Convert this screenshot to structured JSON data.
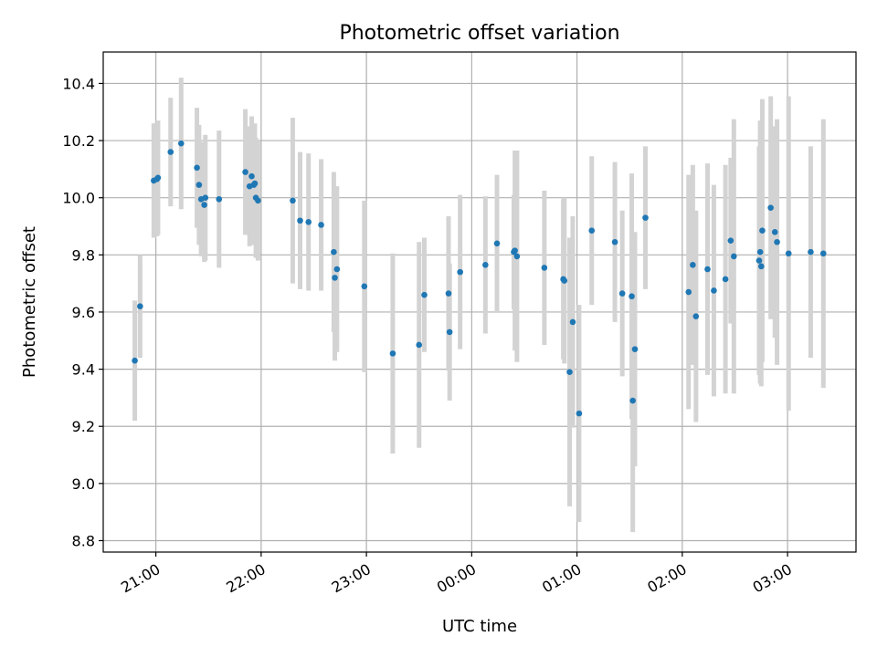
{
  "chart_data": {
    "type": "scatter",
    "title": "Photometric offset variation",
    "xlabel": "UTC time",
    "ylabel": "Photometric offset",
    "x_unit": "hours since 00:00 UTC (negative = previous day)",
    "xlim": [
      -3.5,
      3.65
    ],
    "ylim": [
      8.76,
      10.51
    ],
    "xticks": [
      {
        "value": -3,
        "label": "21:00"
      },
      {
        "value": -2,
        "label": "22:00"
      },
      {
        "value": -1,
        "label": "23:00"
      },
      {
        "value": 0,
        "label": "00:00"
      },
      {
        "value": 1,
        "label": "01:00"
      },
      {
        "value": 2,
        "label": "02:00"
      },
      {
        "value": 3,
        "label": "03:00"
      }
    ],
    "yticks": [
      8.8,
      9.0,
      9.2,
      9.4,
      9.6,
      9.8,
      10.0,
      10.2,
      10.4
    ],
    "grid": true,
    "colors": {
      "point": "#1f77b4",
      "error_bar": "#d3d3d3",
      "grid": "#b0b0b0"
    },
    "series": [
      {
        "x": [
          -3.2,
          -3.15,
          -3.02,
          -2.99,
          -2.98,
          -2.86,
          -2.76,
          -2.61,
          -2.59,
          -2.57,
          -2.54,
          -2.53,
          -2.4,
          -2.15,
          -2.11,
          -2.09,
          -2.07,
          -2.06,
          -2.05,
          -2.03,
          -1.7,
          -1.63,
          -1.55,
          -1.43,
          -1.31,
          -1.3,
          -1.28,
          -1.02,
          -0.75,
          -0.5,
          -0.45,
          -0.22,
          -0.21,
          -0.11,
          0.13,
          0.24,
          0.4,
          0.41,
          0.43,
          0.69,
          0.87,
          0.88,
          0.93,
          0.96,
          1.02,
          1.14,
          1.36,
          1.43,
          1.52,
          1.53,
          1.55,
          1.65,
          2.06,
          2.1,
          2.13,
          2.24,
          2.3,
          2.41,
          2.46,
          2.49,
          2.73,
          2.74,
          2.75,
          2.76,
          2.84,
          2.88,
          2.9,
          3.01,
          3.22,
          3.34
        ],
        "y": [
          9.43,
          9.62,
          10.06,
          10.065,
          10.07,
          10.16,
          10.19,
          10.105,
          10.045,
          9.995,
          9.975,
          10.0,
          9.995,
          10.09,
          10.04,
          10.075,
          10.045,
          10.05,
          10.0,
          9.99,
          9.99,
          9.92,
          9.915,
          9.905,
          9.81,
          9.72,
          9.75,
          9.69,
          9.455,
          9.485,
          9.66,
          9.665,
          9.53,
          9.74,
          9.765,
          9.84,
          9.81,
          9.815,
          9.795,
          9.755,
          9.715,
          9.71,
          9.39,
          9.565,
          9.245,
          9.885,
          9.845,
          9.665,
          9.655,
          9.29,
          9.47,
          9.93,
          9.67,
          9.765,
          9.585,
          9.75,
          9.675,
          9.715,
          9.85,
          9.795,
          9.78,
          9.81,
          9.76,
          9.885,
          9.965,
          9.88,
          9.845,
          9.805,
          9.81,
          9.805
        ],
        "yerr": [
          0.21,
          0.18,
          0.2,
          0.2,
          0.2,
          0.19,
          0.23,
          0.21,
          0.21,
          0.2,
          0.2,
          0.22,
          0.24,
          0.22,
          0.21,
          0.21,
          0.21,
          0.21,
          0.21,
          0.21,
          0.29,
          0.24,
          0.24,
          0.23,
          0.28,
          0.29,
          0.29,
          0.3,
          0.35,
          0.36,
          0.2,
          0.27,
          0.24,
          0.27,
          0.24,
          0.24,
          0.2,
          0.35,
          0.37,
          0.27,
          0.28,
          0.29,
          0.47,
          0.37,
          0.38,
          0.26,
          0.28,
          0.29,
          0.43,
          0.46,
          0.41,
          0.25,
          0.41,
          0.35,
          0.37,
          0.37,
          0.37,
          0.4,
          0.29,
          0.48,
          0.4,
          0.46,
          0.42,
          0.46,
          0.39,
          0.37,
          0.43,
          0.55,
          0.37,
          0.47
        ]
      }
    ]
  }
}
